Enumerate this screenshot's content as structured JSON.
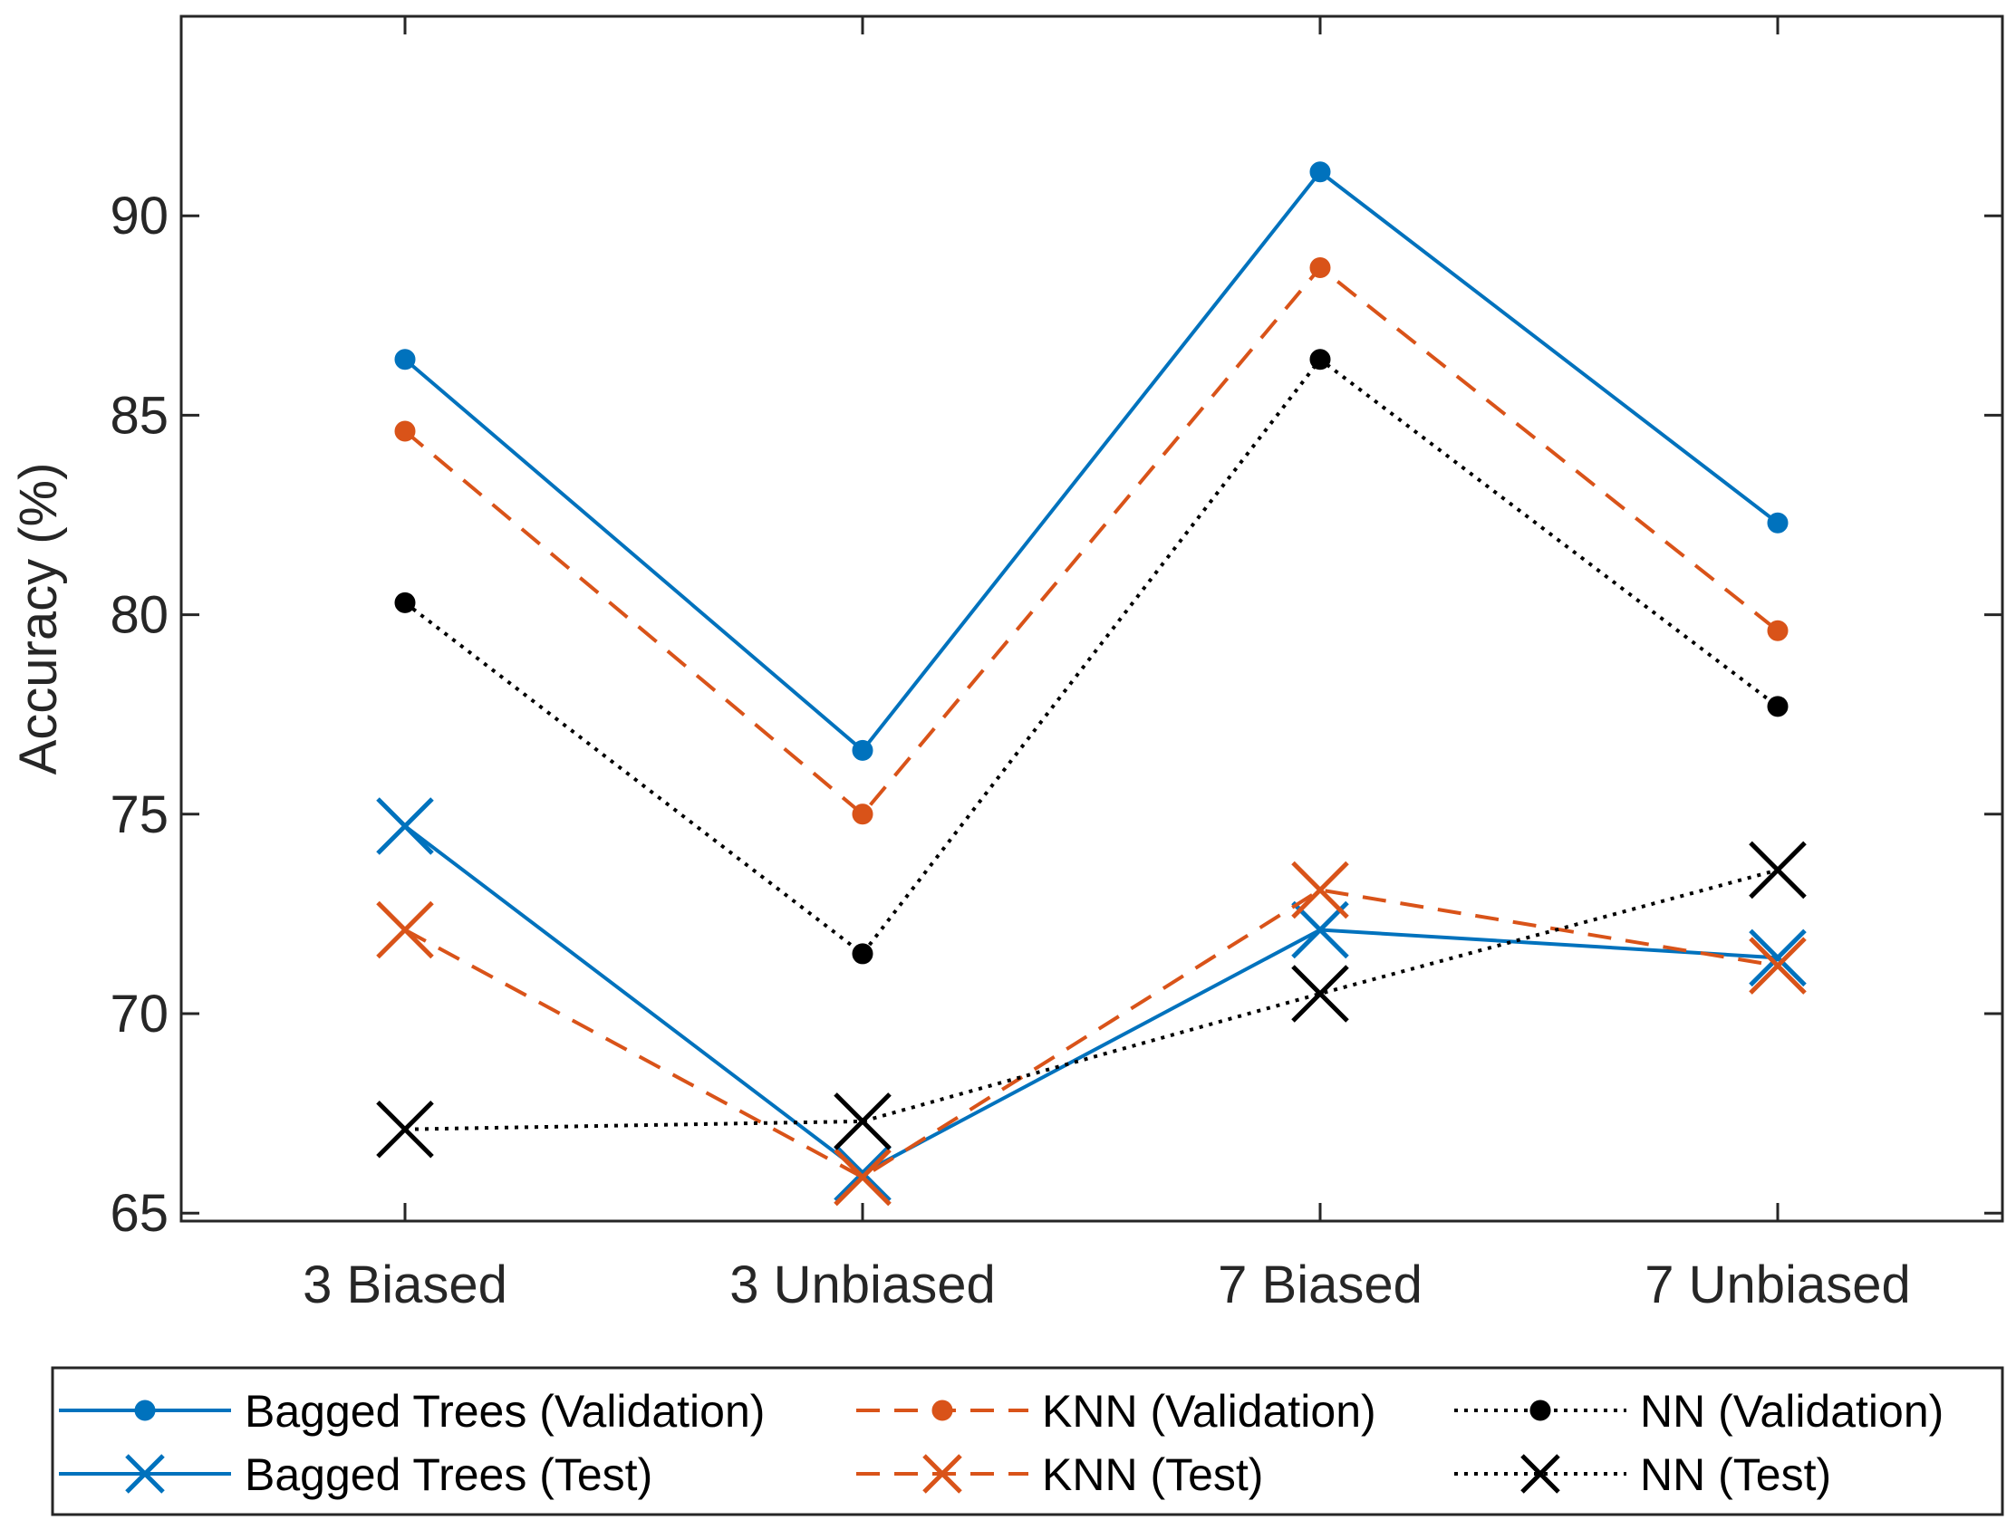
{
  "chart_data": {
    "type": "line",
    "title": "",
    "xlabel": "",
    "ylabel": "Accuracy (%)",
    "categories": [
      "3 Biased",
      "3 Unbiased",
      "7 Biased",
      "7 Unbiased"
    ],
    "ylim": [
      64.8,
      95
    ],
    "yticks": [
      65,
      70,
      75,
      80,
      85,
      90
    ],
    "grid": false,
    "legend_position": "bottom",
    "series": [
      {
        "name": "Bagged Trees (Validation)",
        "values": [
          86.4,
          76.6,
          91.1,
          82.3
        ],
        "color": "#0072BD",
        "dash": "solid",
        "marker": "dot"
      },
      {
        "name": "KNN (Validation)",
        "values": [
          84.6,
          75.0,
          88.7,
          79.6
        ],
        "color": "#D95319",
        "dash": "dashed",
        "marker": "dot"
      },
      {
        "name": "NN (Validation)",
        "values": [
          80.3,
          71.5,
          86.4,
          77.7
        ],
        "color": "#000000",
        "dash": "dotted",
        "marker": "dot"
      },
      {
        "name": "Bagged Trees (Test)",
        "values": [
          74.7,
          66.0,
          72.1,
          71.4
        ],
        "color": "#0072BD",
        "dash": "solid",
        "marker": "x"
      },
      {
        "name": "KNN (Test)",
        "values": [
          72.1,
          65.9,
          73.1,
          71.2
        ],
        "color": "#D95319",
        "dash": "dashed",
        "marker": "x"
      },
      {
        "name": "NN (Test)",
        "values": [
          67.1,
          67.3,
          70.5,
          73.6
        ],
        "color": "#000000",
        "dash": "dotted",
        "marker": "x"
      }
    ]
  }
}
